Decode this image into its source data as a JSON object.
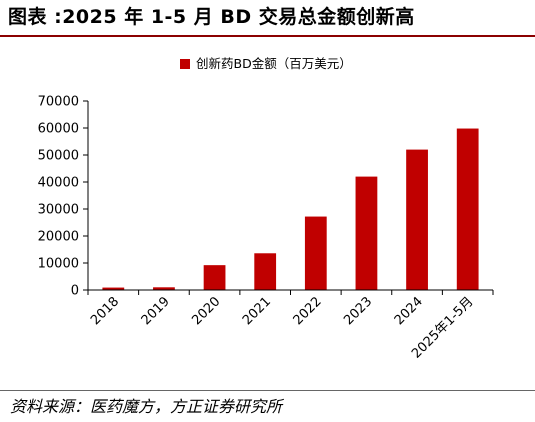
{
  "header": {
    "figure_title": "图表 :2025 年 1-5 月 BD 交易总金额创新高"
  },
  "footer": {
    "source": "资料来源：医药魔方，方正证券研究所"
  },
  "colors": {
    "bar": "#c00000",
    "title_rule": "#8b0000",
    "axis": "#000000"
  },
  "chart_data": {
    "type": "bar",
    "title": "",
    "xlabel": "",
    "ylabel": "",
    "categories": [
      "2018",
      "2019",
      "2020",
      "2021",
      "2022",
      "2023",
      "2024",
      "2025年1-5月"
    ],
    "series": [
      {
        "name": "创新药BD金额（百万美元）",
        "values": [
          900,
          1000,
          9200,
          13600,
          27200,
          42000,
          52000,
          59800
        ]
      }
    ],
    "ylim": [
      0,
      70000
    ],
    "yticks": [
      0,
      10000,
      20000,
      30000,
      40000,
      50000,
      60000,
      70000
    ],
    "grid": false,
    "legend": "top-center"
  }
}
